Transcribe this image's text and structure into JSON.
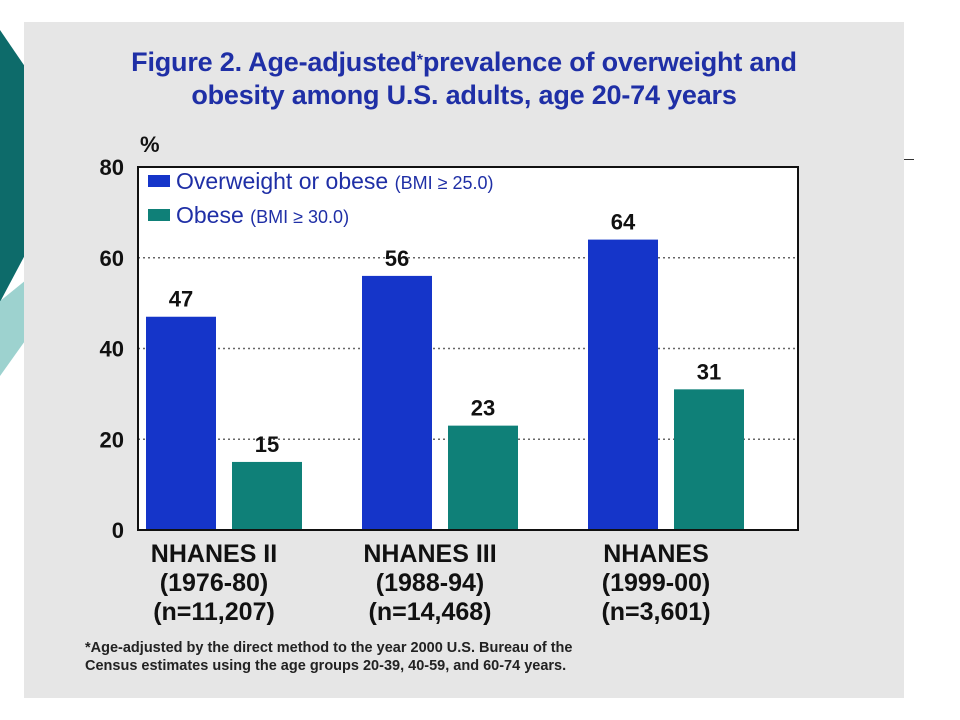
{
  "title_line1": "Figure 2. Age-adjusted",
  "title_mark": "*",
  "title_line1_rest": "prevalence of overweight and",
  "title_line2": "obesity among U.S. adults, age 20-74 years",
  "footnote_line1": "*Age-adjusted by the direct method to the year 2000 U.S. Bureau of the",
  "footnote_line2": "Census estimates using the age groups 20-39, 40-59, and 60-74 years.",
  "colors": {
    "overweight": "#1535c9",
    "obese": "#0f8078",
    "title": "#1f2fa6",
    "panel": "#e6e6e6"
  },
  "chart_data": {
    "type": "bar",
    "ylabel": "%",
    "ylim": [
      0,
      80
    ],
    "yticks": [
      0,
      20,
      40,
      60,
      80
    ],
    "grid": "dotted horizontal",
    "legend_position": "top-left",
    "categories": [
      [
        "NHANES II",
        "(1976-80)",
        "(n=11,207)"
      ],
      [
        "NHANES III",
        "(1988-94)",
        "(n=14,468)"
      ],
      [
        "NHANES",
        "(1999-00)",
        "(n=3,601)"
      ]
    ],
    "series": [
      {
        "name": "Overweight or obese",
        "qualifier": "(BMI ≥ 25.0)",
        "values": [
          47,
          56,
          64
        ],
        "labels": [
          "47",
          "56",
          "64"
        ]
      },
      {
        "name": "Obese",
        "qualifier": "(BMI ≥ 30.0)",
        "values": [
          15,
          23,
          31
        ],
        "labels": [
          "15",
          "23",
          "31"
        ]
      }
    ]
  }
}
